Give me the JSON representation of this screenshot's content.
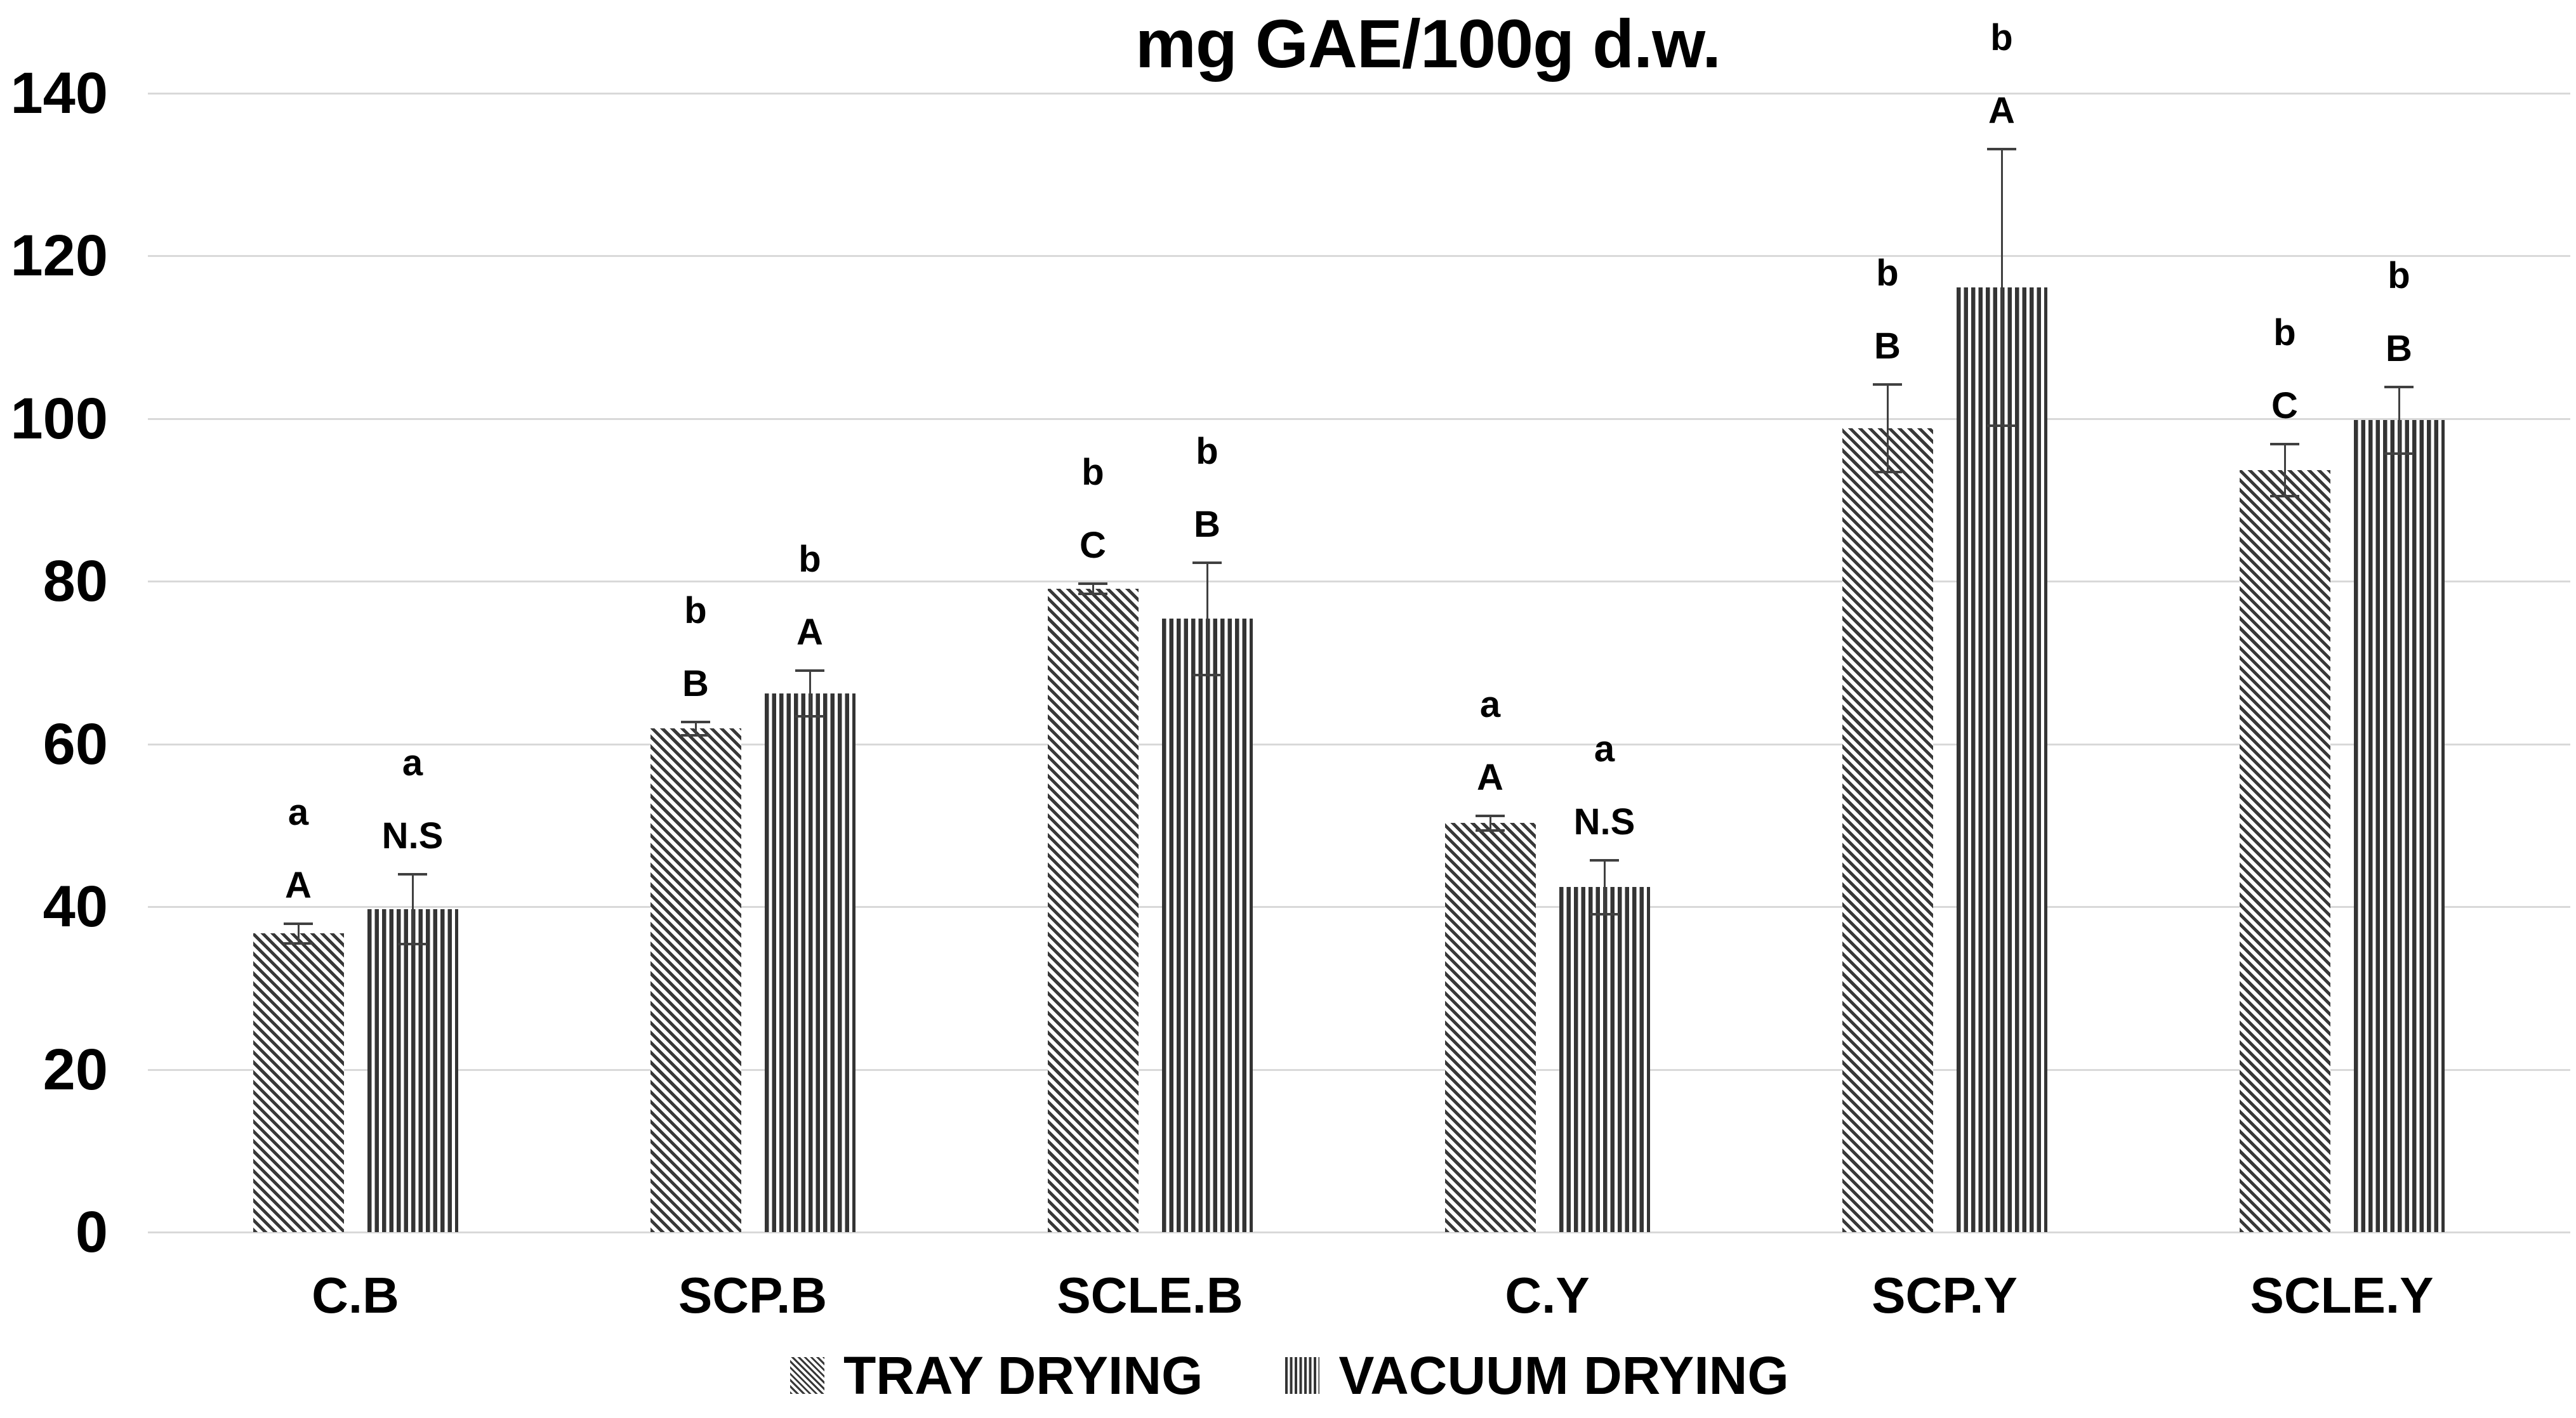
{
  "colors": {
    "background": "#ffffff",
    "bar_stripe_dark": "#383838",
    "gridline": "#d9d9d9",
    "error_bar": "#404040",
    "text": "#000000"
  },
  "chart_data": {
    "type": "bar",
    "title": "mg GAE/100g d.w.",
    "xlabel": "",
    "ylabel": "",
    "categories": [
      "C.B",
      "SCP.B",
      "SCLE.B",
      "C.Y",
      "SCP.Y",
      "SCLE.Y"
    ],
    "series": [
      {
        "name": "TRAY DRYING",
        "pattern": "diagonal-hatch",
        "values": [
          36.7,
          61.9,
          79.1,
          50.3,
          98.8,
          93.7
        ],
        "errors": [
          1.2,
          0.8,
          0.6,
          0.9,
          5.4,
          3.2
        ],
        "labels": [
          [
            "a",
            "A"
          ],
          [
            "b",
            "B"
          ],
          [
            "b",
            "C"
          ],
          [
            "a",
            "A"
          ],
          [
            "b",
            "B"
          ],
          [
            "b",
            "C"
          ]
        ]
      },
      {
        "name": "VACUUM DRYING",
        "pattern": "vertical-stripes",
        "values": [
          39.7,
          66.2,
          75.4,
          42.4,
          116.1,
          99.8
        ],
        "errors": [
          4.3,
          2.8,
          6.9,
          3.3,
          17.0,
          4.1
        ],
        "labels": [
          [
            "a",
            "N.S"
          ],
          [
            "b",
            "A"
          ],
          [
            "b",
            "B"
          ],
          [
            "a",
            "N.S"
          ],
          [
            "b",
            "A"
          ],
          [
            "b",
            "B"
          ]
        ]
      }
    ],
    "ylim": [
      0,
      140
    ],
    "yticks": [
      0,
      20,
      40,
      60,
      80,
      100,
      120,
      140
    ],
    "grid": true,
    "error_bars": "plus-minus",
    "legend_position": "bottom-center"
  }
}
